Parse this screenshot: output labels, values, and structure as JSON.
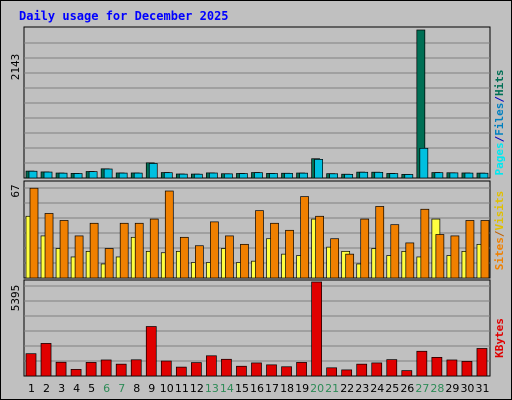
{
  "title": "Daily usage for December 2025",
  "colors": {
    "page_bg": "#c0c0c0",
    "plot_bg": "#c0c0c0",
    "grid": "#808080",
    "title_text": "#0000ff",
    "axis_text": "#000000",
    "weekend_text": "#2e8b57",
    "hits": "#006f55",
    "files": "#00c0e0",
    "pages": "#00e8f0",
    "visits": "#ffff40",
    "sites": "#f08000",
    "kbytes": "#e00000"
  },
  "chart_data": [
    {
      "type": "bar",
      "panel": "requests",
      "ymax_label": "2143",
      "legend": [
        "Pages",
        "/",
        "Files",
        "/",
        "Hits"
      ],
      "categories": [
        "1",
        "2",
        "3",
        "4",
        "5",
        "6",
        "7",
        "8",
        "9",
        "10",
        "11",
        "12",
        "13",
        "14",
        "15",
        "16",
        "17",
        "18",
        "19",
        "20",
        "21",
        "22",
        "23",
        "24",
        "25",
        "26",
        "27",
        "28",
        "29",
        "30",
        "31"
      ],
      "weekend_days": [
        6,
        7,
        13,
        14,
        20,
        21,
        27,
        28
      ],
      "series": [
        {
          "name": "Hits",
          "values": [
            100,
            88,
            72,
            67,
            94,
            133,
            73,
            73,
            220,
            79,
            58,
            57,
            74,
            62,
            66,
            79,
            67,
            69,
            72,
            279,
            63,
            55,
            85,
            84,
            66,
            53,
            2143,
            79,
            76,
            73,
            71
          ]
        },
        {
          "name": "Files",
          "values": [
            98,
            86,
            70,
            65,
            92,
            130,
            71,
            71,
            210,
            77,
            56,
            55,
            72,
            60,
            64,
            77,
            65,
            67,
            70,
            270,
            61,
            53,
            83,
            82,
            64,
            51,
            430,
            77,
            74,
            71,
            69
          ]
        },
        {
          "name": "Pages",
          "values": [
            0,
            0,
            0,
            0,
            0,
            0,
            0,
            0,
            0,
            0,
            0,
            0,
            0,
            0,
            0,
            0,
            0,
            0,
            0,
            0,
            0,
            0,
            0,
            0,
            0,
            0,
            0,
            0,
            0,
            0,
            0
          ]
        }
      ]
    },
    {
      "type": "bar",
      "panel": "visitors",
      "ymax_label": "67",
      "legend": [
        "Sites",
        "/",
        "Visits"
      ],
      "series": [
        {
          "name": "Visits",
          "values": [
            44,
            30,
            21,
            15,
            19,
            10,
            15,
            29,
            19,
            18,
            19,
            11,
            11,
            21,
            11,
            12,
            28,
            17,
            16,
            42,
            22,
            19,
            10,
            21,
            16,
            19,
            15,
            42,
            16,
            19,
            24
          ]
        },
        {
          "name": "Sites",
          "values": [
            64,
            46,
            41,
            30,
            39,
            21,
            39,
            39,
            42,
            62,
            29,
            23,
            40,
            30,
            24,
            48,
            39,
            34,
            58,
            44,
            28,
            17,
            42,
            51,
            38,
            25,
            49,
            31,
            30,
            41,
            41
          ]
        }
      ]
    },
    {
      "type": "bar",
      "panel": "kbytes",
      "ymax_label": "5395",
      "legend": [
        "KBytes"
      ],
      "series": [
        {
          "name": "KBytes",
          "values": [
            1280,
            1870,
            790,
            380,
            780,
            920,
            680,
            930,
            2840,
            860,
            510,
            770,
            1160,
            960,
            560,
            750,
            640,
            530,
            780,
            5395,
            470,
            350,
            680,
            750,
            940,
            310,
            1420,
            1070,
            920,
            840,
            1580
          ]
        }
      ]
    }
  ]
}
